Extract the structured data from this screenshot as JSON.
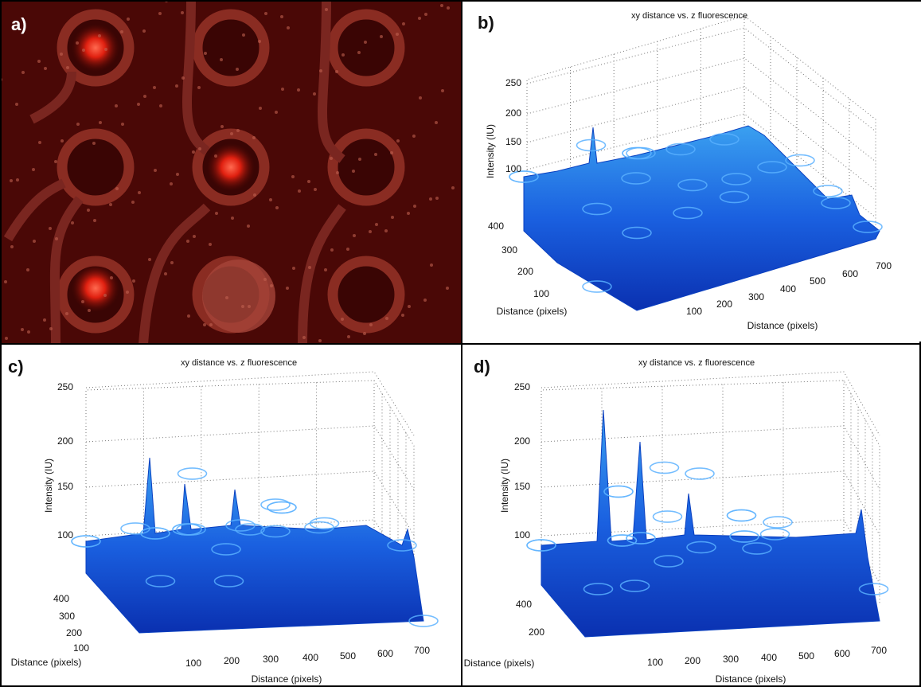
{
  "panels": [
    {
      "label": "a)"
    },
    {
      "label": "b)",
      "title": "xy distance vs. z fluorescence",
      "z_label": "Intensity (IU)",
      "y_label": "Distance (pixels)",
      "x_label": "Distance (pixels)",
      "z_ticks": [
        100,
        150,
        200,
        250
      ],
      "y_ticks": [
        100,
        200,
        300,
        400
      ],
      "x_ticks": [
        100,
        200,
        300,
        400,
        500,
        600,
        700
      ]
    },
    {
      "label": "c)",
      "title": "xy distance vs. z fluorescence",
      "z_label": "Intensity (IU)",
      "y_label": "Distance (pixels)",
      "x_label": "Distance (pixels)",
      "z_ticks": [
        100,
        150,
        200,
        250
      ],
      "y_ticks": [
        100,
        200,
        300,
        400
      ],
      "x_ticks": [
        100,
        200,
        300,
        400,
        500,
        600,
        700
      ]
    },
    {
      "label": "d)",
      "title": "xy distance vs. z fluorescence",
      "z_label": "Intensity (IU)",
      "y_label": "Distance (pixels)",
      "x_label": "Distance (pixels)",
      "z_ticks": [
        100,
        150,
        200,
        250
      ],
      "y_ticks": [
        200,
        400
      ],
      "x_ticks": [
        100,
        200,
        300,
        400,
        500,
        600,
        700
      ]
    }
  ]
}
